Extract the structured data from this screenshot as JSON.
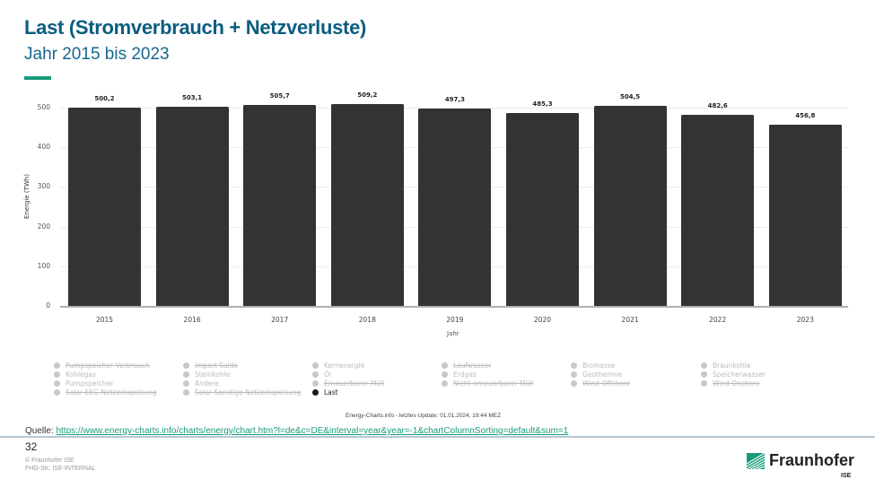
{
  "header": {
    "title": "Last (Stromverbrauch + Netzverluste)",
    "subtitle": "Jahr 2015 bis 2023"
  },
  "chart_data": {
    "type": "bar",
    "title": "Last (Stromverbrauch + Netzverluste)",
    "subtitle": "Jahr 2015 bis 2023",
    "categories": [
      "2015",
      "2016",
      "2017",
      "2018",
      "2019",
      "2020",
      "2021",
      "2022",
      "2023"
    ],
    "values": [
      500.2,
      503.1,
      505.7,
      509.2,
      497.3,
      485.3,
      504.5,
      482.6,
      456.8
    ],
    "value_labels": [
      "500,2",
      "503,1",
      "505,7",
      "509,2",
      "497,3",
      "485,3",
      "504,5",
      "482,6",
      "456,8"
    ],
    "xlabel": "Jahr",
    "ylabel": "Energie (TWh)",
    "ylim": [
      0,
      500
    ],
    "yticks": [
      "0",
      "100",
      "200",
      "300",
      "400",
      "500"
    ],
    "grid": true,
    "bar_color": "#333333",
    "legend_position": "bottom",
    "legend": [
      {
        "label": "Pumpspeicher Verbrauch",
        "active": false
      },
      {
        "label": "Kohlegas",
        "active": false
      },
      {
        "label": "Pumpspeicher",
        "active": false
      },
      {
        "label": "Solar EEG-Netzeinspeisung",
        "active": false
      },
      {
        "label": "Import Saldo",
        "active": false
      },
      {
        "label": "Steinkohle",
        "active": false
      },
      {
        "label": "Andere",
        "active": false
      },
      {
        "label": "Solar Sonstige Netzeinspeisung",
        "active": false
      },
      {
        "label": "Kernenergie",
        "active": false
      },
      {
        "label": "Öl",
        "active": false
      },
      {
        "label": "Erneuerbarer Müll",
        "active": false
      },
      {
        "label": "Last",
        "active": true
      },
      {
        "label": "Laufwasser",
        "active": false
      },
      {
        "label": "Erdgas",
        "active": false
      },
      {
        "label": "Nicht-erneuerbarer Müll",
        "active": false
      },
      {
        "label": "Biomasse",
        "active": false
      },
      {
        "label": "Geothermie",
        "active": false
      },
      {
        "label": "Wind Offshore",
        "active": false
      },
      {
        "label": "Braunkohle",
        "active": false
      },
      {
        "label": "Speicherwasser",
        "active": false
      },
      {
        "label": "Wind Onshore",
        "active": false
      }
    ]
  },
  "legend_columns": [
    [
      {
        "label": "Pumpspeicher Verbrauch",
        "strike": true
      },
      {
        "label": "Kohlegas",
        "strike": false
      },
      {
        "label": "Pumpspeicher",
        "strike": false
      },
      {
        "label": "Solar EEG-Netzeinspeisung",
        "strike": true
      }
    ],
    [
      {
        "label": "Import Saldo",
        "strike": true
      },
      {
        "label": "Steinkohle",
        "strike": false
      },
      {
        "label": "Andere",
        "strike": false
      },
      {
        "label": "Solar Sonstige Netzeinspeisung",
        "strike": true
      }
    ],
    [
      {
        "label": "Kernenergie",
        "strike": false
      },
      {
        "label": "Öl",
        "strike": false
      },
      {
        "label": "Erneuerbarer Müll",
        "strike": true
      },
      {
        "label": "Last",
        "active": true
      }
    ],
    [
      {
        "label": "Laufwasser",
        "strike": true
      },
      {
        "label": "Erdgas",
        "strike": false
      },
      {
        "label": "Nicht-erneuerbarer Müll",
        "strike": true
      }
    ],
    [
      {
        "label": "Biomasse",
        "strike": false
      },
      {
        "label": "Geothermie",
        "strike": false
      },
      {
        "label": "Wind Offshore",
        "strike": true
      }
    ],
    [
      {
        "label": "Braunkohle",
        "strike": false
      },
      {
        "label": "Speicherwasser",
        "strike": false
      },
      {
        "label": "Wind Onshore",
        "strike": true
      }
    ]
  ],
  "credit": "Energy-Charts.info - letztes Update: 01.01.2024, 19:44 MEZ",
  "source": {
    "label": "Quelle: ",
    "url_text": "https://www.energy-charts.info/charts/energy/chart.htm?l=de&c=DE&interval=year&year=-1&chartColumnSorting=default&sum=1"
  },
  "footer": {
    "page_number": "32",
    "copyright": "© Fraunhofer ISE",
    "classification": "FHG-SK: ISE-INTERNAL",
    "logo_text": "Fraunhofer",
    "logo_sub": "ISE"
  },
  "colors": {
    "title": "#0b5c80",
    "accent": "#179c7d",
    "bar": "#333333"
  }
}
